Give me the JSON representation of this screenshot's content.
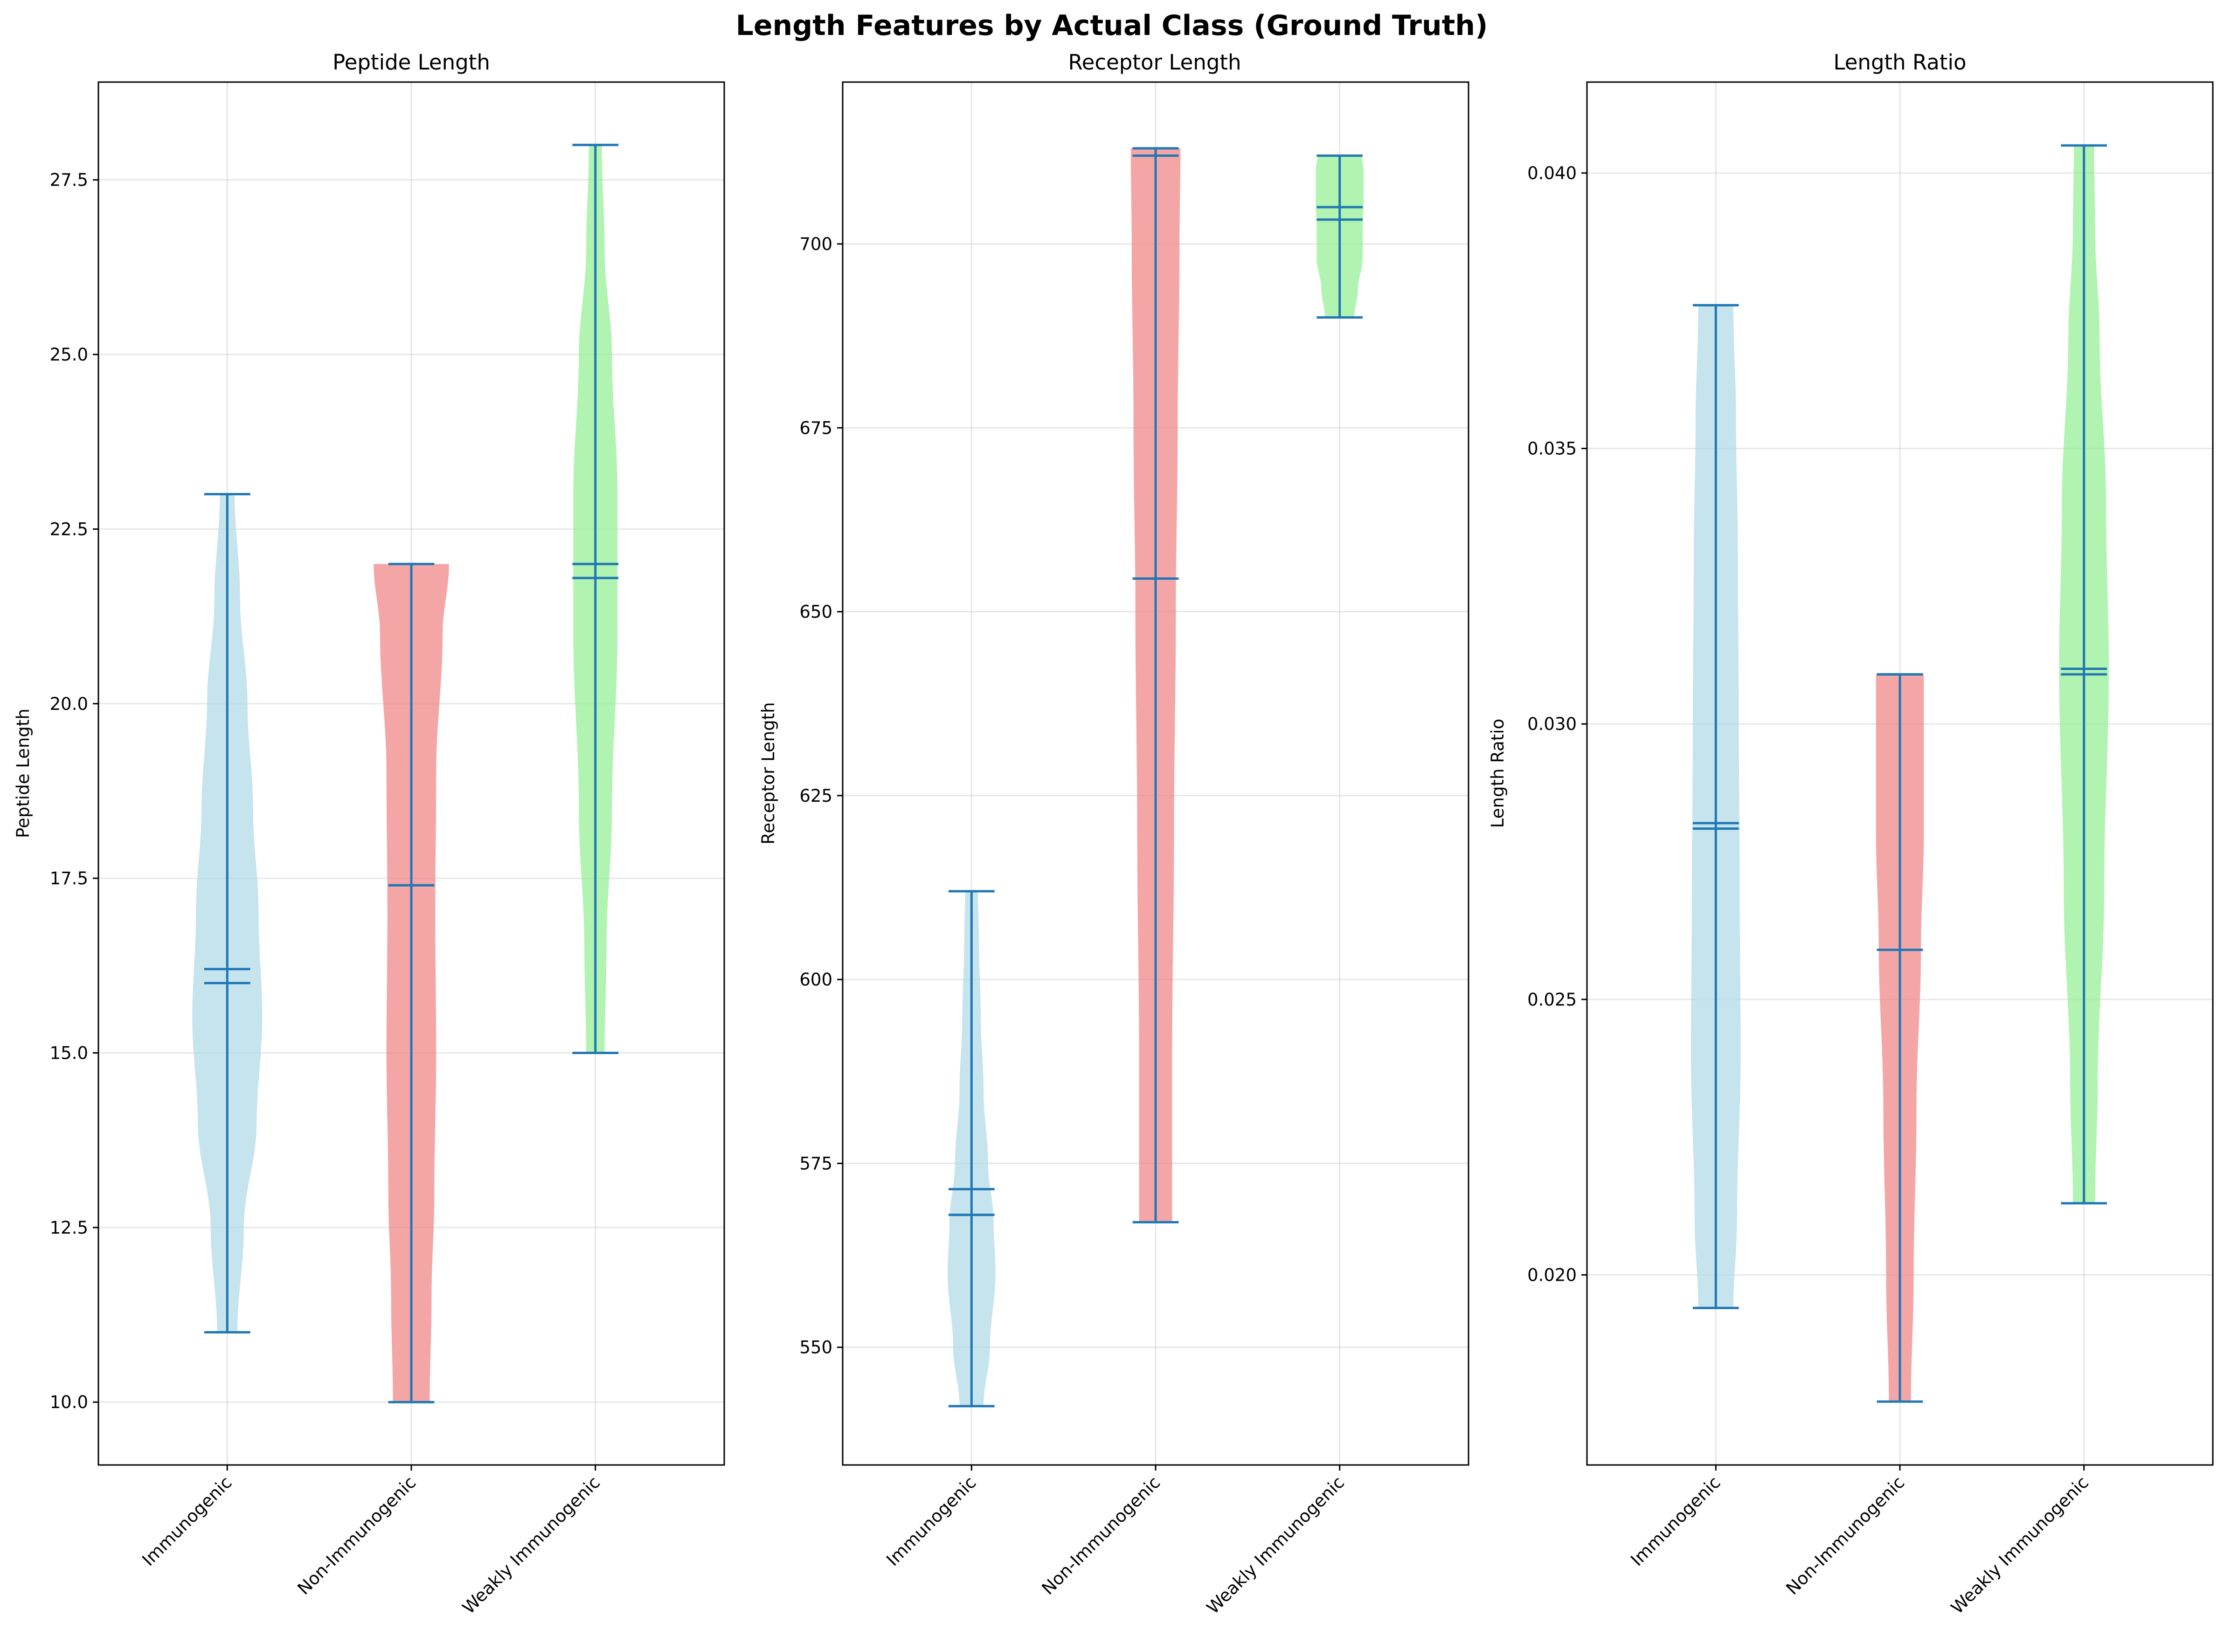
{
  "title": "Length Features by Actual Class (Ground Truth)",
  "colors": {
    "bodies": [
      "#add8e6",
      "#f08080",
      "#90ee90"
    ],
    "lines": "#1f77b4"
  },
  "chart_data": [
    {
      "type": "violin",
      "title": "Peptide Length",
      "xlabel": "",
      "ylabel": "Peptide Length",
      "categories": [
        "Immunogenic",
        "Non-Immunogenic",
        "Weakly Immunogenic"
      ],
      "ylim": [
        9.1,
        28.9
      ],
      "yticks": [
        10.0,
        12.5,
        15.0,
        17.5,
        20.0,
        22.5,
        25.0,
        27.5
      ],
      "ytick_labels": [
        "10.0",
        "12.5",
        "15.0",
        "17.5",
        "20.0",
        "22.5",
        "25.0",
        "27.5"
      ],
      "grid": true,
      "violins": [
        {
          "min": 11,
          "max": 23,
          "mean": 16.2,
          "median": 16.0,
          "profile": [
            [
              11,
              0.11
            ],
            [
              12.5,
              0.18
            ],
            [
              14,
              0.32
            ],
            [
              15.5,
              0.38
            ],
            [
              17,
              0.34
            ],
            [
              18.5,
              0.28
            ],
            [
              20,
              0.22
            ],
            [
              21.5,
              0.14
            ],
            [
              23,
              0.08
            ]
          ]
        },
        {
          "min": 10,
          "max": 22,
          "mean": 17.4,
          "median": 17.4,
          "profile": [
            [
              10,
              0.2
            ],
            [
              11.5,
              0.22
            ],
            [
              13,
              0.25
            ],
            [
              15,
              0.27
            ],
            [
              17,
              0.26
            ],
            [
              19,
              0.27
            ],
            [
              21,
              0.34
            ],
            [
              22,
              0.41
            ]
          ]
        },
        {
          "min": 15,
          "max": 28,
          "mean": 22.0,
          "median": 21.8,
          "profile": [
            [
              15,
              0.1
            ],
            [
              16.5,
              0.12
            ],
            [
              18.5,
              0.18
            ],
            [
              21,
              0.24
            ],
            [
              23,
              0.24
            ],
            [
              25,
              0.18
            ],
            [
              26.5,
              0.1
            ],
            [
              28,
              0.07
            ]
          ]
        }
      ]
    },
    {
      "type": "violin",
      "title": "Receptor Length",
      "xlabel": "",
      "ylabel": "Receptor Length",
      "categories": [
        "Immunogenic",
        "Non-Immunogenic",
        "Weakly Immunogenic"
      ],
      "ylim": [
        534,
        722
      ],
      "yticks": [
        550,
        575,
        600,
        625,
        650,
        675,
        700
      ],
      "ytick_labels": [
        "550",
        "575",
        "600",
        "625",
        "650",
        "675",
        "700"
      ],
      "grid": true,
      "violins": [
        {
          "min": 542,
          "max": 612,
          "mean": 571.5,
          "median": 568,
          "profile": [
            [
              542,
              0.13
            ],
            [
              550,
              0.2
            ],
            [
              560,
              0.26
            ],
            [
              567,
              0.24
            ],
            [
              575,
              0.18
            ],
            [
              585,
              0.13
            ],
            [
              595,
              0.1
            ],
            [
              605,
              0.08
            ],
            [
              612,
              0.07
            ]
          ]
        },
        {
          "min": 567,
          "max": 713,
          "mean": 654.5,
          "median": 712,
          "profile": [
            [
              567,
              0.18
            ],
            [
              590,
              0.18
            ],
            [
              620,
              0.2
            ],
            [
              650,
              0.22
            ],
            [
              675,
              0.24
            ],
            [
              700,
              0.26
            ],
            [
              713,
              0.27
            ]
          ]
        },
        {
          "min": 690,
          "max": 712,
          "mean": 703.3,
          "median": 705,
          "profile": [
            [
              690,
              0.16
            ],
            [
              694,
              0.2
            ],
            [
              698,
              0.25
            ],
            [
              702,
              0.25
            ],
            [
              706,
              0.26
            ],
            [
              710,
              0.26
            ],
            [
              712,
              0.24
            ]
          ]
        }
      ]
    },
    {
      "type": "violin",
      "title": "Length Ratio",
      "xlabel": "",
      "ylabel": "Length Ratio",
      "categories": [
        "Immunogenic",
        "Non-Immunogenic",
        "Weakly Immunogenic"
      ],
      "ylim": [
        0.01655,
        0.04165
      ],
      "yticks": [
        0.02,
        0.025,
        0.03,
        0.035,
        0.04
      ],
      "ytick_labels": [
        "0.020",
        "0.025",
        "0.030",
        "0.035",
        "0.040"
      ],
      "grid": true,
      "violins": [
        {
          "min": 0.0194,
          "max": 0.0376,
          "mean": 0.0282,
          "median": 0.0281,
          "profile": [
            [
              0.0194,
              0.19
            ],
            [
              0.021,
              0.23
            ],
            [
              0.024,
              0.27
            ],
            [
              0.027,
              0.26
            ],
            [
              0.03,
              0.25
            ],
            [
              0.033,
              0.24
            ],
            [
              0.0355,
              0.22
            ],
            [
              0.0376,
              0.19
            ]
          ]
        },
        {
          "min": 0.0177,
          "max": 0.0309,
          "mean": 0.0259,
          "median": 0.0309,
          "profile": [
            [
              0.0177,
              0.12
            ],
            [
              0.02,
              0.15
            ],
            [
              0.023,
              0.18
            ],
            [
              0.026,
              0.23
            ],
            [
              0.028,
              0.26
            ],
            [
              0.0295,
              0.26
            ],
            [
              0.0309,
              0.26
            ]
          ]
        },
        {
          "min": 0.0213,
          "max": 0.0405,
          "mean": 0.031,
          "median": 0.0309,
          "profile": [
            [
              0.0213,
              0.12
            ],
            [
              0.0235,
              0.15
            ],
            [
              0.027,
              0.22
            ],
            [
              0.031,
              0.27
            ],
            [
              0.034,
              0.24
            ],
            [
              0.037,
              0.17
            ],
            [
              0.039,
              0.12
            ],
            [
              0.0405,
              0.11
            ]
          ]
        }
      ]
    }
  ]
}
